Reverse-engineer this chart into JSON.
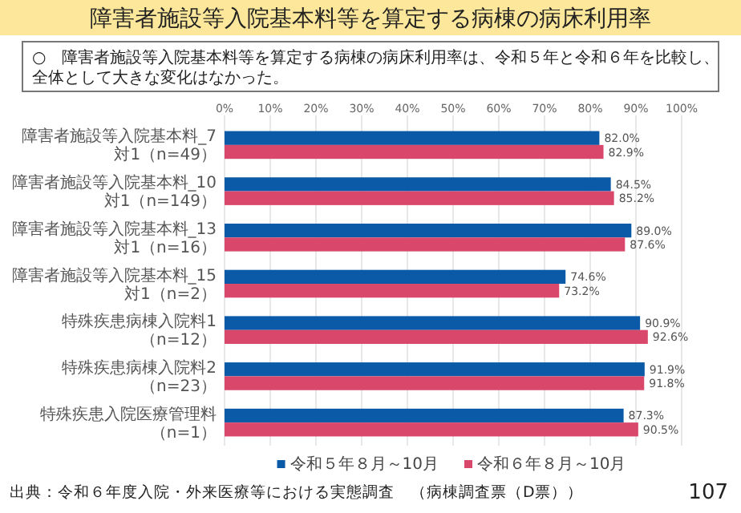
{
  "chart_data": {
    "type": "bar",
    "orientation": "horizontal",
    "title": "障害者施設等入院基本料等を算定する病棟の病床利用率",
    "subtitle": "○　障害者施設等入院基本料等を算定する病棟の病床利用率は、令和５年と令和６年を比較し、全体として大きな変化はなかった。",
    "categories": [
      "障害者施設等入院基本料_7対1（n=49）",
      "障害者施設等入院基本料_10対1（n=149）",
      "障害者施設等入院基本料_13対1（n=16）",
      "障害者施設等入院基本料_15対1（n=2）",
      "特殊疾患病棟入院料1（n=12）",
      "特殊疾患病棟入院料2（n=23）",
      "特殊疾患入院医療管理料（n=1）"
    ],
    "series": [
      {
        "name": "令和５年８月～10月",
        "color": "#0b5aa8",
        "values": [
          82.0,
          84.5,
          89.0,
          74.6,
          90.9,
          91.9,
          87.3
        ],
        "value_labels": [
          "82.0%",
          "84.5%",
          "89.0%",
          "74.6%",
          "90.9%",
          "91.9%",
          "87.3%"
        ]
      },
      {
        "name": "令和６年８月～10月",
        "color": "#d9476b",
        "values": [
          82.9,
          85.2,
          87.6,
          73.2,
          92.6,
          91.8,
          90.5
        ],
        "value_labels": [
          "82.9%",
          "85.2%",
          "87.6%",
          "73.2%",
          "92.6%",
          "91.8%",
          "90.5%"
        ]
      }
    ],
    "xlim": [
      0,
      100
    ],
    "xticks": [
      {
        "value": 0,
        "label": "0%"
      },
      {
        "value": 10,
        "label": "10%"
      },
      {
        "value": 20,
        "label": "20%"
      },
      {
        "value": 30,
        "label": "30%"
      },
      {
        "value": 40,
        "label": "40%"
      },
      {
        "value": 50,
        "label": "50%"
      },
      {
        "value": 60,
        "label": "60%"
      },
      {
        "value": 70,
        "label": "70%"
      },
      {
        "value": 80,
        "label": "80%"
      },
      {
        "value": 90,
        "label": "90%"
      },
      {
        "value": 100,
        "label": "100%"
      }
    ],
    "grid": "x",
    "legend": "bottom",
    "annotations": [
      "出典：令和６年度入院・外来医療等における実態調査　（病棟調査票（D票））",
      "107"
    ]
  }
}
